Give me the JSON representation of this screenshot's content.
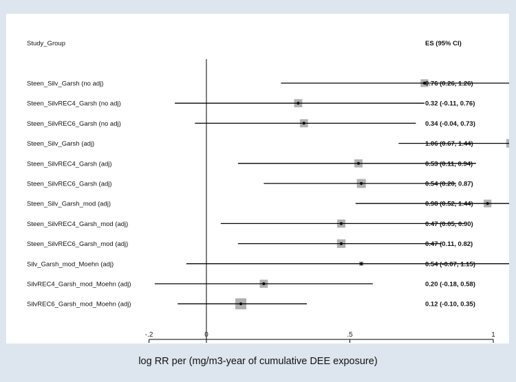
{
  "chart_data": {
    "type": "forest",
    "header_left": "Study_Group",
    "header_right": "ES (95% CI)",
    "xlabel": "log RR per (mg/m3-year of cumulative DEE exposure)",
    "xticks": [
      -0.2,
      0,
      0.5,
      1
    ],
    "xtick_labels": [
      "-.2",
      "0",
      ".5",
      "1"
    ],
    "xlim": [
      -0.4,
      1.55
    ],
    "reference_line": 0,
    "rows": [
      {
        "label": "Steen_Silv_Garsh (no adj)",
        "es": 0.76,
        "lo": 0.26,
        "hi": 1.26,
        "weight": 0.6,
        "text": "0.76 (0.26, 1.26)"
      },
      {
        "label": "Steen_SilvREC4_Garsh (no adj)",
        "es": 0.32,
        "lo": -0.11,
        "hi": 0.76,
        "weight": 0.65,
        "text": "0.32 (-0.11, 0.76)"
      },
      {
        "label": "Steen_SilvREC6_Garsh (no adj)",
        "es": 0.34,
        "lo": -0.04,
        "hi": 0.73,
        "weight": 0.65,
        "text": "0.34 (-0.04, 0.73)"
      },
      {
        "label": "Steen_Silv_Garsh (adj)",
        "es": 1.06,
        "lo": 0.67,
        "hi": 1.44,
        "weight": 0.7,
        "text": "1.06 (0.67, 1.44)"
      },
      {
        "label": "Steen_SilvREC4_Garsh (adj)",
        "es": 0.53,
        "lo": 0.11,
        "hi": 0.94,
        "weight": 0.65,
        "text": "0.53 (0.11, 0.94)"
      },
      {
        "label": "Steen_SilvREC6_Garsh (adj)",
        "es": 0.54,
        "lo": 0.2,
        "hi": 0.87,
        "weight": 0.75,
        "text": "0.54 (0.20, 0.87)"
      },
      {
        "label": "Steen_Silv_Garsh_mod (adj)",
        "es": 0.98,
        "lo": 0.52,
        "hi": 1.44,
        "weight": 0.6,
        "text": "0.98 (0.52, 1.44)"
      },
      {
        "label": "Steen_SilvREC4_Garsh_mod (adj)",
        "es": 0.47,
        "lo": 0.05,
        "hi": 0.9,
        "weight": 0.65,
        "text": "0.47 (0.05, 0.90)"
      },
      {
        "label": "Steen_SilvREC6_Garsh_mod (adj)",
        "es": 0.47,
        "lo": 0.11,
        "hi": 0.82,
        "weight": 0.7,
        "text": "0.47 (0.11, 0.82)"
      },
      {
        "label": "Silv_Garsh_mod_Moehn (adj)",
        "es": 0.54,
        "lo": -0.07,
        "hi": 1.15,
        "weight": 0.2,
        "text": "0.54 (-0.07, 1.15)"
      },
      {
        "label": "SilvREC4_Garsh_mod_Moehn (adj)",
        "es": 0.2,
        "lo": -0.18,
        "hi": 0.58,
        "weight": 0.65,
        "text": "0.20 (-0.18, 0.58)"
      },
      {
        "label": "SilvREC6_Garsh_mod_Moehn (adj)",
        "es": 0.12,
        "lo": -0.1,
        "hi": 0.35,
        "weight": 1.0,
        "text": "0.12 (-0.10, 0.35)"
      }
    ],
    "colors": {
      "ci_line": "#000000",
      "weight_box": "#b0b0b0",
      "point": "#000000",
      "panel_bg": "#ffffff",
      "outer_bg": "#dde6ee"
    }
  }
}
